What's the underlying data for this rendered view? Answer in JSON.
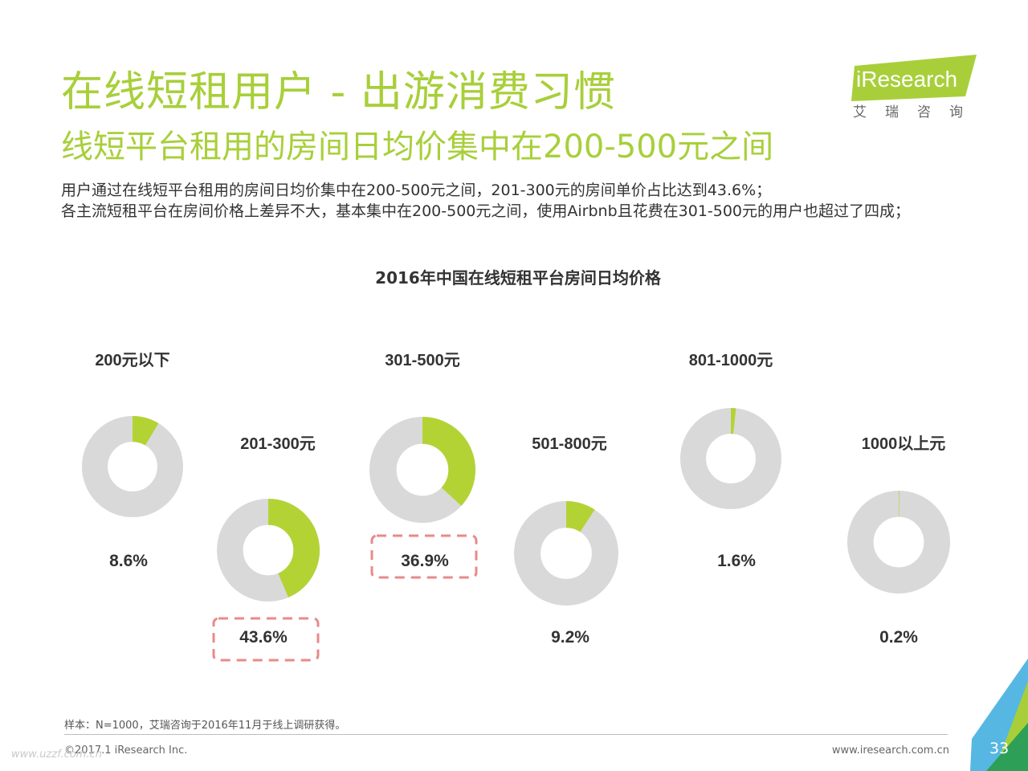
{
  "header": {
    "title": "在线短租用户 - 出游消费习惯",
    "subtitle": "线短平台租用的房间日均价集中在200-500元之间"
  },
  "logo": {
    "text": "iResearch",
    "cn": "艾瑞咨询",
    "colors": {
      "green": "#a8cf3a",
      "text": "#ffffff"
    }
  },
  "description": {
    "line1": "用户通过在线短平台租用的房间日均价集中在200-500元之间，201-300元的房间单价占比达到43.6%；",
    "line2": "各主流短租平台在房间价格上差异不大，基本集中在200-500元之间，使用Airbnb且花费在301-500元的用户也超过了四成；"
  },
  "chart_data": {
    "type": "pie",
    "title": "2016年中国在线短租平台房间日均价格",
    "unit": "%",
    "categories": [
      "200元以下",
      "201-300元",
      "301-500元",
      "501-800元",
      "801-1000元",
      "1000以上元"
    ],
    "values": [
      8.6,
      43.6,
      36.9,
      9.2,
      1.6,
      0.2
    ],
    "labels": [
      "8.6%",
      "43.6%",
      "36.9%",
      "9.2%",
      "1.6%",
      "0.2%"
    ],
    "highlighted": [
      "201-300元",
      "301-500元"
    ],
    "colors": {
      "value": "#b3d335",
      "remainder": "#d9d9d9",
      "highlight_box": "#e88a8a"
    }
  },
  "footer": {
    "note": "样本：N=1000，艾瑞咨询于2016年11月于线上调研获得。",
    "copyright": "©2017.1 iResearch Inc.",
    "website": "www.iresearch.com.cn",
    "page_number": "33",
    "watermark": "www.uzzf.com.cn"
  }
}
